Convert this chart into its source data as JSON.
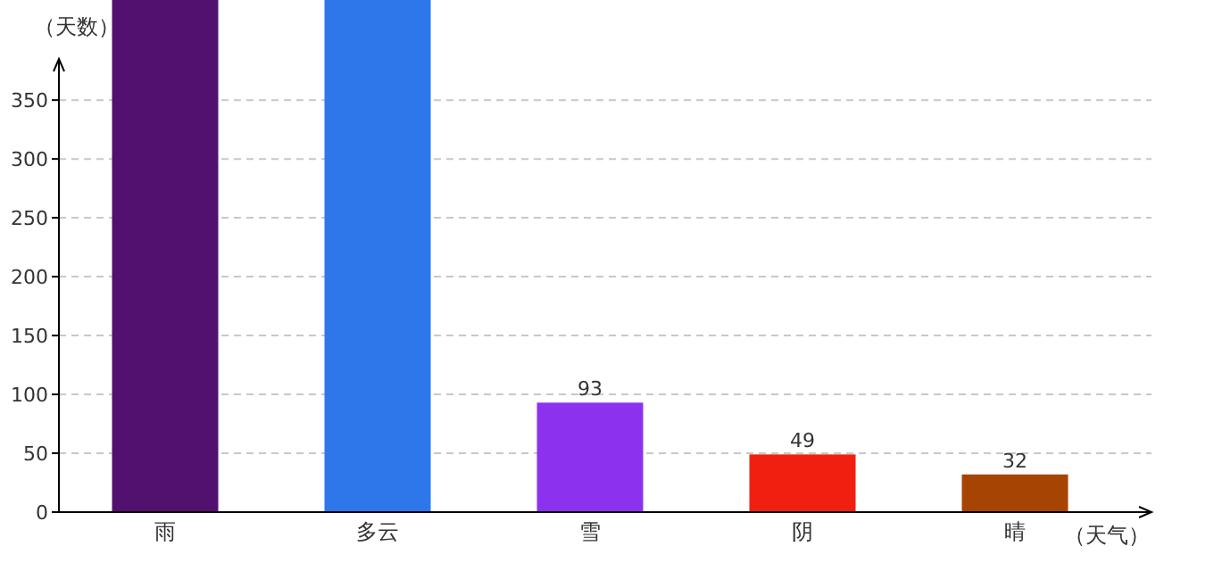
{
  "chart_data": {
    "type": "bar",
    "xlabel": "（天气）",
    "ylabel": "（天数）",
    "categories": [
      "雨",
      "多云",
      "雪",
      "阴",
      "晴"
    ],
    "values": [
      435,
      435,
      93,
      49,
      32
    ],
    "colors": [
      "#52116e",
      "#2e77eb",
      "#8c32ef",
      "#f01f10",
      "#a64404"
    ],
    "value_labels": [
      null,
      null,
      "93",
      "49",
      "32"
    ],
    "ylim": [
      0,
      435
    ],
    "yticks": [
      0,
      50,
      100,
      150,
      200,
      250,
      300,
      350
    ],
    "grid": "y"
  }
}
